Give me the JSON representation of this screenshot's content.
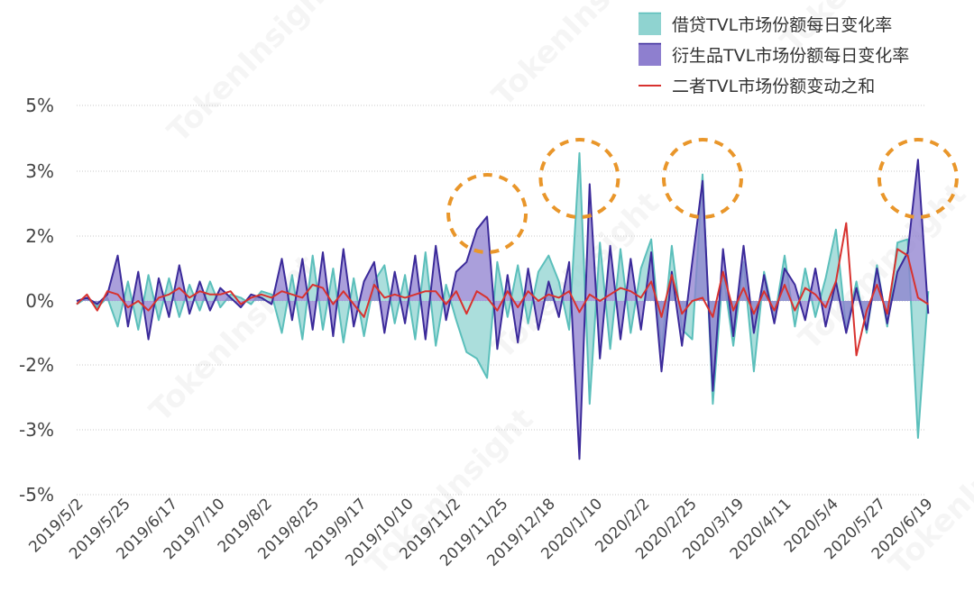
{
  "watermark": "TokenInsight",
  "chart_data": {
    "type": "line",
    "title": "",
    "xlabel": "",
    "ylabel": "",
    "grid": true,
    "legend_position": "top-right",
    "y_tick_labels": [
      "5%",
      "3%",
      "2%",
      "0%",
      "-2%",
      "-3%",
      "-5%"
    ],
    "y_tick_values": [
      5,
      3,
      2,
      0,
      -2,
      -3,
      -5
    ],
    "x_tick_labels": [
      "2019/5/2",
      "2019/5/25",
      "2019/6/17",
      "2019/7/10",
      "2019/8/2",
      "2019/8/25",
      "2019/9/17",
      "2019/10/10",
      "2019/11/2",
      "2019/11/25",
      "2019/12/18",
      "2020/1/10",
      "2020/2/2",
      "2020/2/25",
      "2020/3/19",
      "2020/4/11",
      "2020/5/4",
      "2020/5/27",
      "2020/6/19"
    ],
    "x": [
      "2019/5/2",
      "2019/5/7",
      "2019/5/12",
      "2019/5/17",
      "2019/5/22",
      "2019/5/27",
      "2019/6/1",
      "2019/6/6",
      "2019/6/11",
      "2019/6/16",
      "2019/6/21",
      "2019/6/26",
      "2019/7/1",
      "2019/7/6",
      "2019/7/11",
      "2019/7/16",
      "2019/7/21",
      "2019/7/26",
      "2019/7/31",
      "2019/8/5",
      "2019/8/10",
      "2019/8/15",
      "2019/8/20",
      "2019/8/25",
      "2019/8/30",
      "2019/9/4",
      "2019/9/9",
      "2019/9/14",
      "2019/9/19",
      "2019/9/24",
      "2019/9/29",
      "2019/10/4",
      "2019/10/9",
      "2019/10/14",
      "2019/10/19",
      "2019/10/24",
      "2019/10/29",
      "2019/11/3",
      "2019/11/8",
      "2019/11/13",
      "2019/11/18",
      "2019/11/23",
      "2019/11/28",
      "2019/12/3",
      "2019/12/8",
      "2019/12/13",
      "2019/12/18",
      "2019/12/23",
      "2019/12/28",
      "2020/1/2",
      "2020/1/7",
      "2020/1/12",
      "2020/1/17",
      "2020/1/22",
      "2020/1/27",
      "2020/2/1",
      "2020/2/6",
      "2020/2/11",
      "2020/2/16",
      "2020/2/21",
      "2020/2/26",
      "2020/3/2",
      "2020/3/7",
      "2020/3/12",
      "2020/3/17",
      "2020/3/22",
      "2020/3/27",
      "2020/4/1",
      "2020/4/6",
      "2020/4/11",
      "2020/4/16",
      "2020/4/21",
      "2020/4/26",
      "2020/5/1",
      "2020/5/6",
      "2020/5/11",
      "2020/5/16",
      "2020/5/21",
      "2020/5/26",
      "2020/5/31",
      "2020/6/5",
      "2020/6/10",
      "2020/6/15",
      "2020/6/20"
    ],
    "series": [
      {
        "name": "借贷TVL市场份额每日变化率",
        "color": "#5bbfbb",
        "fill": "#8fd3d0",
        "style": "area",
        "values": [
          -0.1,
          0.1,
          -0.2,
          0.1,
          -0.8,
          0.6,
          -0.9,
          0.8,
          -0.6,
          0.7,
          -0.5,
          0.5,
          -0.3,
          0.6,
          -0.2,
          0.2,
          0.1,
          -0.1,
          0.3,
          0.2,
          -1.0,
          0.8,
          -1.2,
          1.4,
          -0.9,
          1.0,
          -1.3,
          0.7,
          -1.1,
          0.6,
          1.1,
          -0.7,
          0.8,
          -1.2,
          1.5,
          -1.4,
          0.5,
          -0.6,
          -1.6,
          -1.8,
          -2.2,
          1.2,
          -0.5,
          1.1,
          -0.7,
          0.9,
          1.4,
          0.6,
          -0.9,
          3.55,
          -2.6,
          1.8,
          -1.5,
          1.6,
          -1.0,
          1.0,
          1.9,
          -1.6,
          1.7,
          -0.9,
          -1.2,
          2.95,
          -2.6,
          0.9,
          -1.4,
          1.2,
          -2.1,
          0.9,
          -0.6,
          1.4,
          -0.8,
          1.0,
          -0.5,
          0.7,
          2.1,
          -0.9,
          0.6,
          -1.0,
          1.1,
          -0.8,
          1.8,
          1.9,
          -3.25,
          0.3
        ]
      },
      {
        "name": "衍生品TVL市场份额每日变化率",
        "color": "#3b2a9a",
        "fill": "#8e7fcf",
        "style": "area",
        "values": [
          0.0,
          0.1,
          -0.1,
          0.2,
          1.4,
          -0.8,
          0.9,
          -1.2,
          0.7,
          -0.5,
          1.1,
          -0.4,
          0.6,
          -0.3,
          0.4,
          0.1,
          -0.2,
          0.2,
          0.1,
          -0.1,
          1.3,
          -0.6,
          1.3,
          -0.9,
          1.5,
          -1.1,
          1.6,
          -0.8,
          0.6,
          1.2,
          -1.0,
          0.9,
          -0.7,
          1.4,
          -1.2,
          1.7,
          -0.6,
          0.9,
          1.2,
          2.1,
          2.3,
          -1.5,
          0.8,
          -1.3,
          1.0,
          -0.9,
          0.6,
          -0.5,
          1.2,
          -3.9,
          2.8,
          -1.8,
          1.7,
          -1.2,
          1.3,
          -0.9,
          1.5,
          -2.1,
          0.9,
          -1.4,
          1.2,
          2.85,
          -2.4,
          1.6,
          -1.1,
          1.7,
          -1.0,
          0.8,
          -0.7,
          1.0,
          0.5,
          -0.6,
          1.0,
          -0.8,
          0.6,
          -1.0,
          0.4,
          -0.9,
          1.0,
          -0.7,
          0.9,
          1.5,
          3.35,
          -0.4
        ]
      },
      {
        "name": "二者TVL市场份额变动之和",
        "color": "#d8322f",
        "style": "line",
        "values": [
          -0.1,
          0.2,
          -0.3,
          0.3,
          0.2,
          -0.2,
          0.0,
          -0.3,
          0.1,
          0.2,
          0.4,
          0.1,
          0.3,
          0.2,
          0.2,
          0.3,
          -0.1,
          0.1,
          0.2,
          0.1,
          0.3,
          0.2,
          0.1,
          0.5,
          0.4,
          -0.1,
          0.3,
          -0.1,
          -0.5,
          0.5,
          0.1,
          0.2,
          0.1,
          0.2,
          0.3,
          0.3,
          -0.1,
          0.3,
          -0.4,
          0.3,
          0.1,
          -0.3,
          0.3,
          -0.2,
          0.3,
          0.0,
          0.2,
          0.1,
          0.3,
          -0.35,
          0.2,
          0.0,
          0.2,
          0.4,
          0.3,
          0.1,
          0.6,
          -0.5,
          0.8,
          -0.4,
          0.0,
          0.1,
          -0.5,
          0.9,
          -0.3,
          0.4,
          -0.4,
          0.3,
          -0.3,
          0.5,
          -0.3,
          0.4,
          0.2,
          -0.2,
          0.6,
          2.2,
          -1.7,
          -0.3,
          0.5,
          -0.4,
          1.6,
          1.4,
          0.1,
          -0.1
        ]
      }
    ],
    "annotations": {
      "type": "dashed-circle",
      "color": "#e9962a",
      "dates": [
        "2019/11/18",
        "2020/1/2",
        "2020/3/2",
        "2020/6/15"
      ]
    }
  }
}
